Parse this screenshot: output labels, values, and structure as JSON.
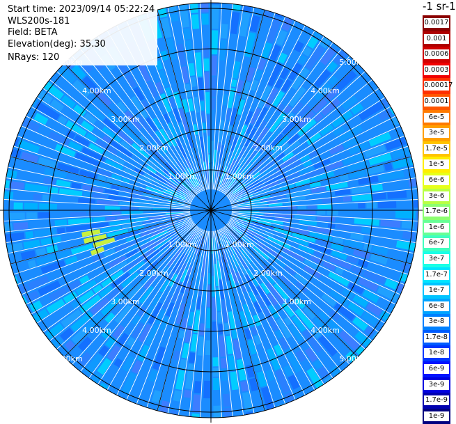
{
  "info": {
    "start_time": "Start time: 2023/09/14 05:22:24",
    "station": "WLS200s-181",
    "field": "Field: BETA",
    "elevation": "Elevation(deg): 35.30",
    "nrays": "NRays: 120"
  },
  "range_labels": [
    "1.00km",
    "2.00km",
    "3.00km",
    "4.00km",
    "5.00km"
  ],
  "colorbar": {
    "unit": "-1 sr-1",
    "levels": [
      {
        "label": "0.0017",
        "color": "#8b0000"
      },
      {
        "label": "0.001",
        "color": "#b00000"
      },
      {
        "label": "0.0006",
        "color": "#d00000"
      },
      {
        "label": "0.0003",
        "color": "#f00000"
      },
      {
        "label": "0.00017",
        "color": "#ff3000"
      },
      {
        "label": "0.0001",
        "color": "#ff5500"
      },
      {
        "label": "6e-5",
        "color": "#ff7a00"
      },
      {
        "label": "3e-5",
        "color": "#ffa000"
      },
      {
        "label": "1.7e-5",
        "color": "#ffc400"
      },
      {
        "label": "1e-5",
        "color": "#ffee00"
      },
      {
        "label": "6e-6",
        "color": "#e6ff1a"
      },
      {
        "label": "3e-6",
        "color": "#b8ff45"
      },
      {
        "label": "1.7e-6",
        "color": "#8cff70"
      },
      {
        "label": "1e-6",
        "color": "#66ff95"
      },
      {
        "label": "6e-7",
        "color": "#40ffbf"
      },
      {
        "label": "3e-7",
        "color": "#1affe6"
      },
      {
        "label": "1.7e-7",
        "color": "#00e5ff"
      },
      {
        "label": "1e-7",
        "color": "#00c4ff"
      },
      {
        "label": "6e-8",
        "color": "#00a3ff"
      },
      {
        "label": "3e-8",
        "color": "#0080ff"
      },
      {
        "label": "1.7e-8",
        "color": "#005cff"
      },
      {
        "label": "1e-8",
        "color": "#0038ff"
      },
      {
        "label": "6e-9",
        "color": "#0014ff"
      },
      {
        "label": "3e-9",
        "color": "#0000e0"
      },
      {
        "label": "1.7e-9",
        "color": "#0000b0"
      },
      {
        "label": "1e-9",
        "color": "#000080"
      }
    ]
  },
  "colors": {
    "field_dominant": "#1a8cff",
    "field_secondary": "#00ccff",
    "background": "#ffffff"
  }
}
